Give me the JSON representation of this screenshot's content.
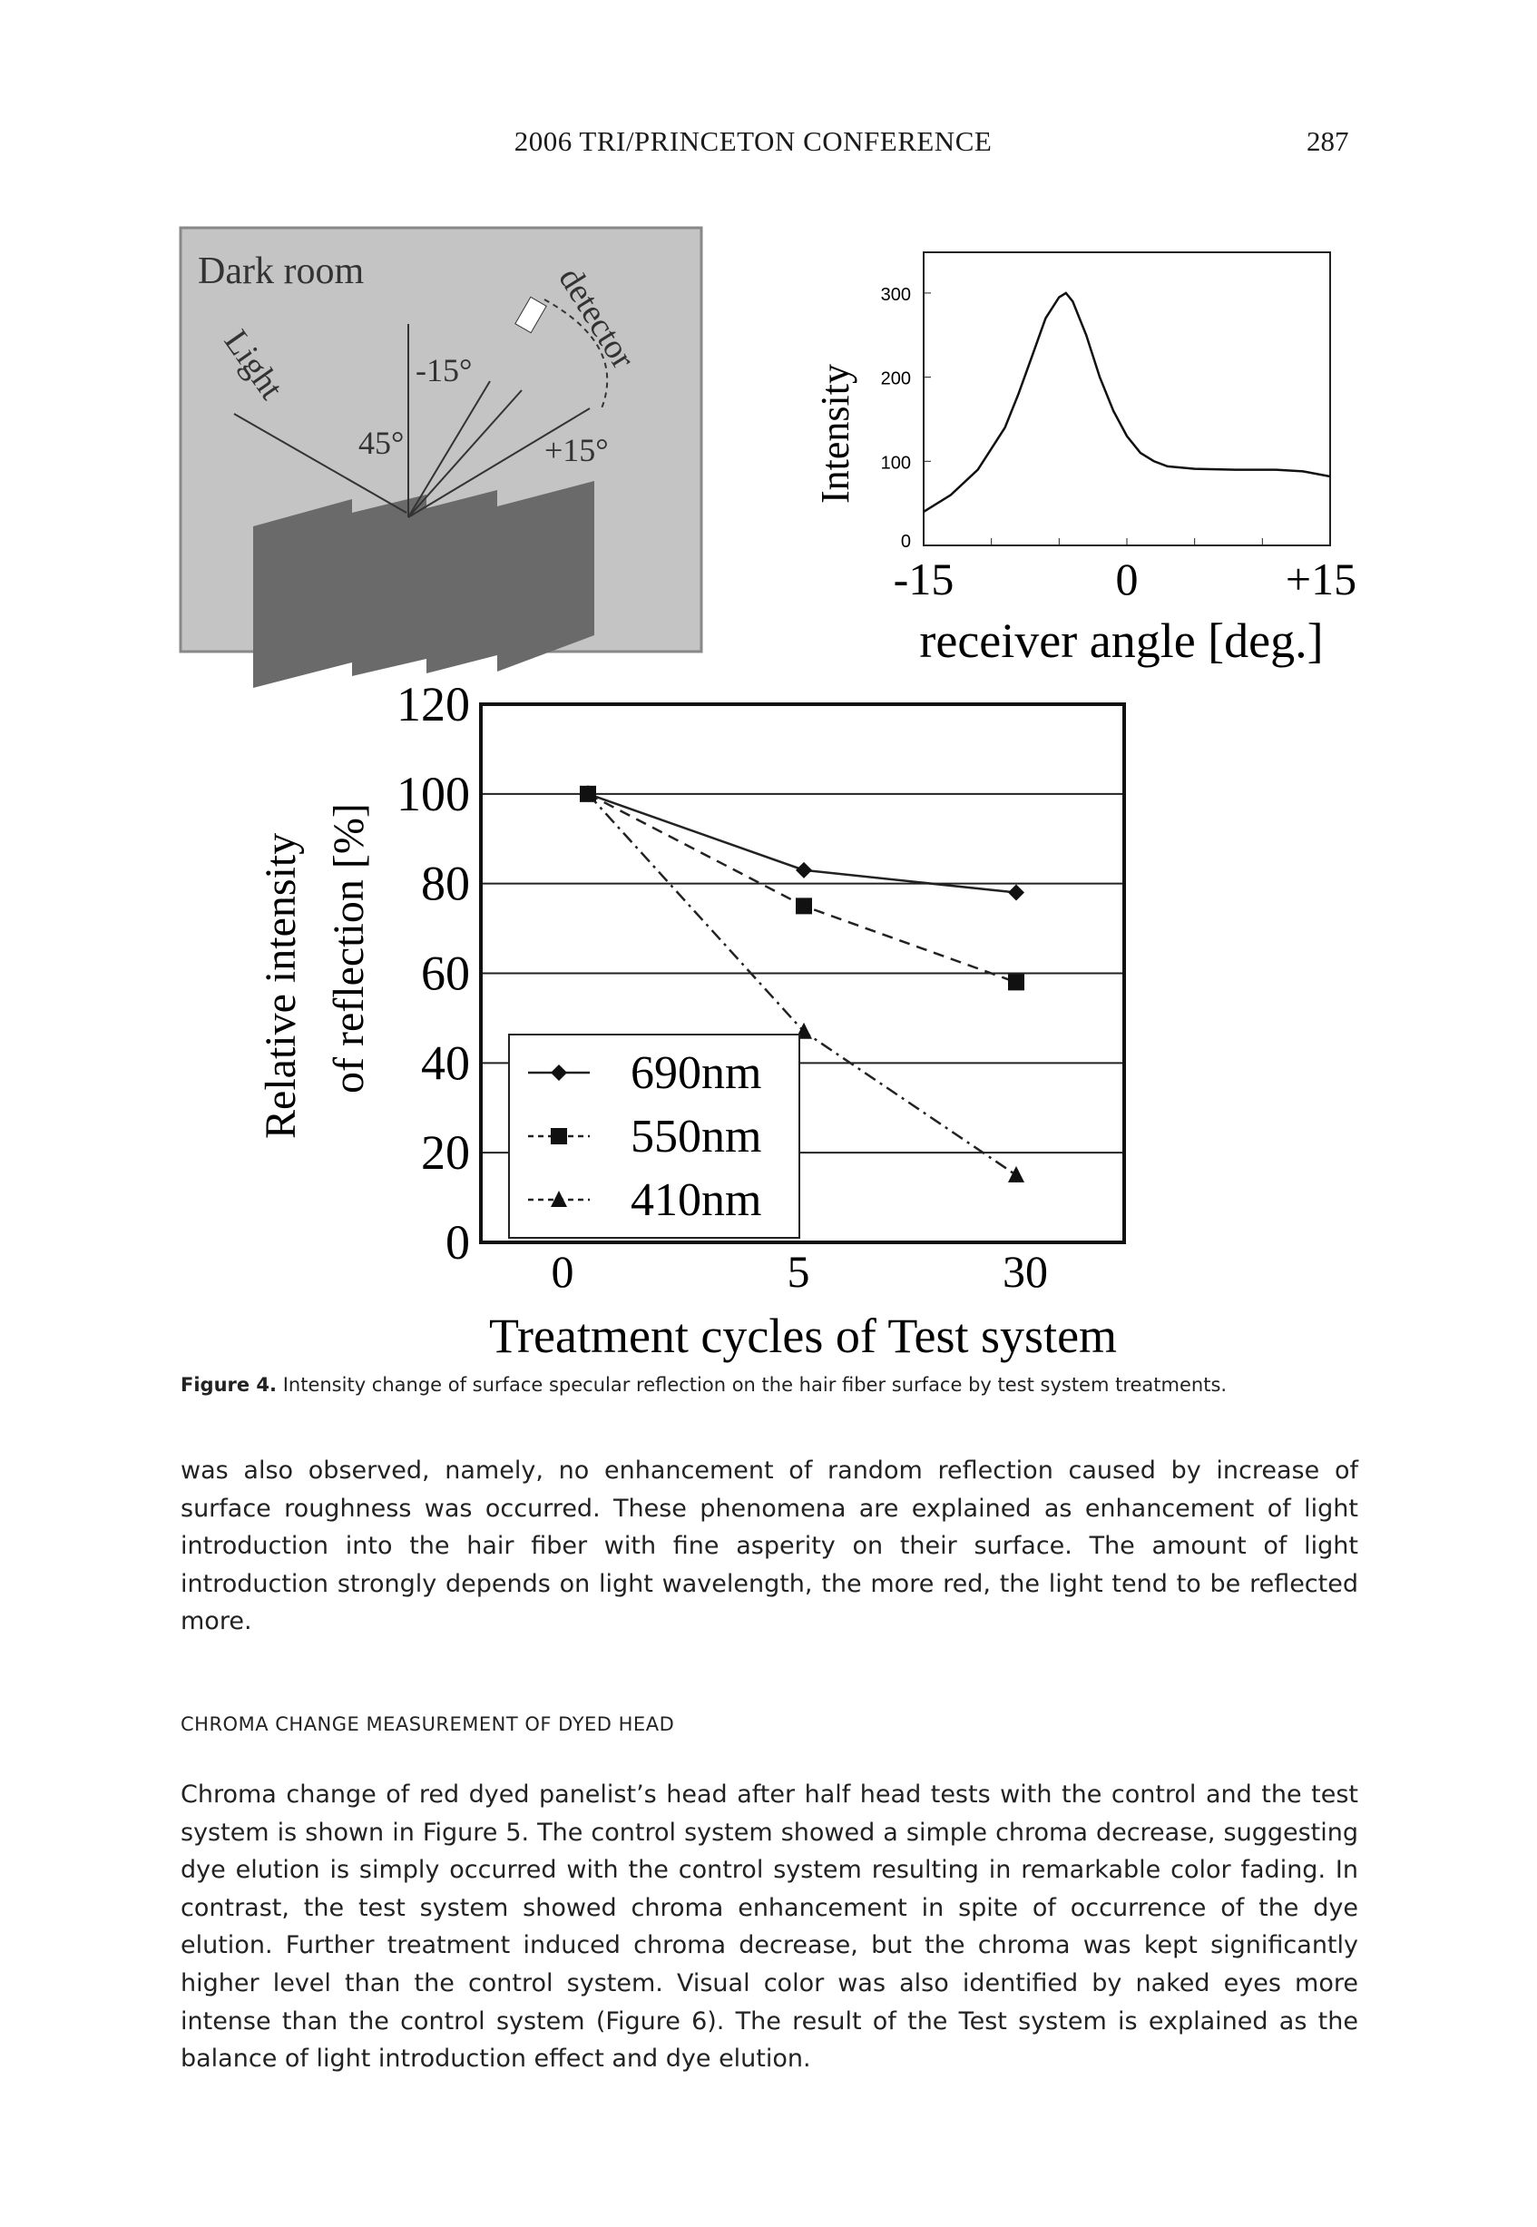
{
  "header": {
    "title": "2006 TRI/PRINCETON CONFERENCE",
    "page_number": "287"
  },
  "diagram": {
    "title": "Dark room",
    "light_label": "Light",
    "detector_label": "detector",
    "angle_45": "45°",
    "angle_minus15": "-15°",
    "angle_plus15": "+15°"
  },
  "chart_data": [
    {
      "type": "line",
      "title": "",
      "xlabel": "receiver angle [deg.]",
      "ylabel": "Intensity",
      "x_ticks": [
        "-15",
        "0",
        "+15"
      ],
      "y_ticks": [
        "0",
        "100",
        "200",
        "300"
      ],
      "xlim": [
        -15,
        15
      ],
      "ylim": [
        0,
        350
      ],
      "series": [
        {
          "name": "intensity",
          "x": [
            -15,
            -13,
            -11,
            -9,
            -8,
            -7,
            -6,
            -5,
            -4.5,
            -4,
            -3,
            -2,
            -1,
            0,
            1,
            2,
            3,
            5,
            8,
            11,
            13,
            15
          ],
          "y": [
            40,
            60,
            90,
            140,
            180,
            225,
            270,
            295,
            300,
            290,
            250,
            200,
            160,
            130,
            110,
            100,
            94,
            91,
            90,
            90,
            88,
            82
          ]
        }
      ]
    },
    {
      "type": "line",
      "title": "",
      "xlabel": "Treatment cycles of Test system",
      "ylabel": "Relative intensity of reflection [%]",
      "categories": [
        "0",
        "5",
        "30"
      ],
      "y_ticks": [
        "0",
        "20",
        "40",
        "60",
        "80",
        "100",
        "120"
      ],
      "ylim": [
        0,
        120
      ],
      "grid": true,
      "legend": "bottom-left",
      "series": [
        {
          "name": "690nm",
          "marker": "diamond",
          "style": "solid",
          "values": [
            100,
            83,
            78
          ]
        },
        {
          "name": "550nm",
          "marker": "square",
          "style": "dashed",
          "values": [
            100,
            75,
            58
          ]
        },
        {
          "name": "410nm",
          "marker": "triangle",
          "style": "dashdot",
          "values": [
            100,
            47,
            15
          ]
        }
      ]
    }
  ],
  "caption": {
    "label": "Figure 4.",
    "text": "Intensity change of surface specular reflection on the hair fiber surface by test system treatments."
  },
  "body": {
    "para1": "was also observed, namely, no enhancement of random reflection caused by increase of surface roughness was occurred. These phenomena are explained as enhancement of light introduction into the hair fiber with fine asperity on their surface. The amount of light introduction strongly depends on light wavelength, the more red, the light tend to be reflected more.",
    "heading": "CHROMA CHANGE MEASUREMENT OF DYED HEAD",
    "para2": "Chroma change of red dyed panelist’s head after half head tests with the control and the test system is shown in Figure 5. The control system showed a simple chroma decrease, suggesting dye elution is simply occurred with the control system resulting in remarkable color fading. In contrast, the test system showed chroma enhancement in spite of occurrence of the dye elution. Further treatment induced chroma decrease, but the chroma was kept significantly higher level than the control system. Visual color was also identified by naked eyes more intense than the control system (Figure 6). The result of the Test system is explained as the balance of light introduction effect and dye elution."
  }
}
